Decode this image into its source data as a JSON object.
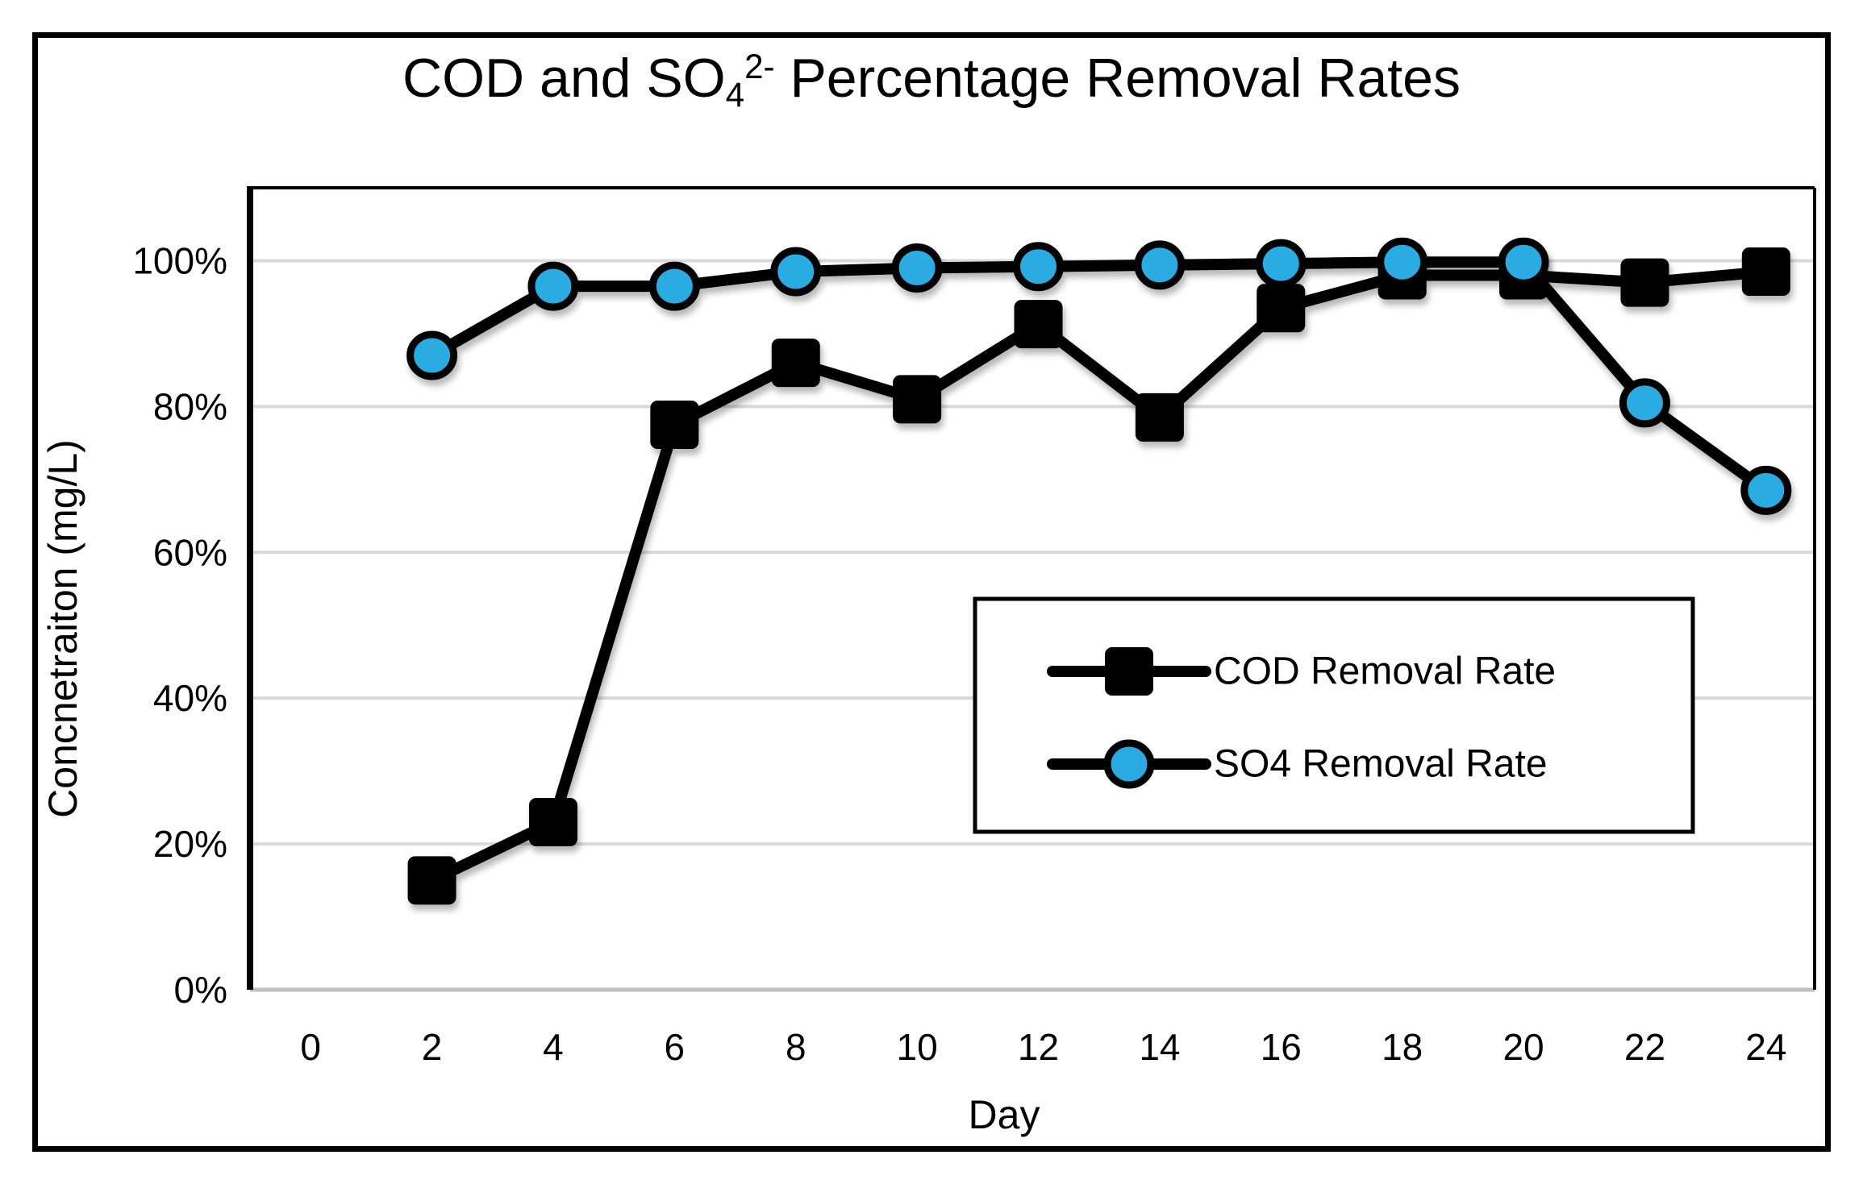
{
  "title": {
    "prefix": "COD and SO",
    "subscript": "4",
    "superscript": "2-",
    "suffix": " Percentage Removal Rates",
    "full_plain": "COD and SO4 2- Percentage Removal Rates"
  },
  "colors": {
    "series_line": "#000000",
    "cod_marker_fill": "#000000",
    "so4_marker_fill": "#29ABE2",
    "gridline": "#D9D9D9",
    "axis_baseline": "#BFBFBF",
    "plot_border": "#000000",
    "background": "#FFFFFF",
    "text": "#000000"
  },
  "legend": {
    "items": [
      {
        "label": "COD Removal Rate",
        "marker": "square"
      },
      {
        "label": "SO4 Removal Rate",
        "marker": "circle"
      }
    ],
    "position": "inside-right",
    "border": true
  },
  "chart_data": {
    "type": "line",
    "title": "COD and SO4 2- Percentage Removal Rates",
    "xlabel": "Day",
    "ylabel": "Concnetraiton (mg/L)",
    "x": [
      2,
      4,
      6,
      8,
      10,
      12,
      14,
      16,
      18,
      20,
      22,
      24
    ],
    "series": [
      {
        "name": "COD Removal Rate",
        "marker": "square",
        "marker_fill": "#000000",
        "values": [
          15,
          23,
          77.5,
          86,
          81,
          91.3,
          78.5,
          93.5,
          98,
          98,
          97,
          98.5
        ]
      },
      {
        "name": "SO4 Removal Rate",
        "marker": "circle",
        "marker_fill": "#29ABE2",
        "values": [
          87,
          96.5,
          96.5,
          98.5,
          99,
          99.2,
          99.4,
          99.6,
          99.8,
          99.8,
          80.5,
          68.5
        ]
      }
    ],
    "x_ticks": [
      0,
      2,
      4,
      6,
      8,
      10,
      12,
      14,
      16,
      18,
      20,
      22,
      24
    ],
    "y_ticks": [
      {
        "value": 0,
        "label": "0%"
      },
      {
        "value": 20,
        "label": "20%"
      },
      {
        "value": 40,
        "label": "40%"
      },
      {
        "value": 60,
        "label": "60%"
      },
      {
        "value": 80,
        "label": "80%"
      },
      {
        "value": 100,
        "label": "100%"
      }
    ],
    "ylim": [
      0,
      110
    ],
    "xlim": [
      -1,
      24.8
    ],
    "grid": "horizontal",
    "legend_position": "inside-right",
    "units": "percent"
  }
}
